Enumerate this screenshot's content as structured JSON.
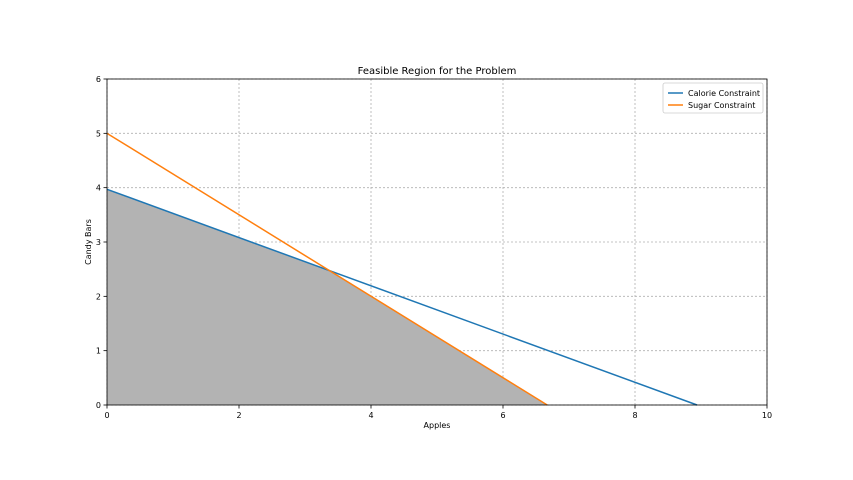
{
  "chart_data": {
    "type": "line",
    "title": "Feasible Region for the Problem",
    "xlabel": "Apples",
    "ylabel": "Candy Bars",
    "xlim": [
      0,
      10
    ],
    "ylim": [
      0,
      6
    ],
    "xticks": [
      "0",
      "2",
      "4",
      "6",
      "8",
      "10"
    ],
    "yticks": [
      "0",
      "1",
      "2",
      "3",
      "4",
      "5",
      "6"
    ],
    "grid": true,
    "legend_position": "top-right",
    "series": [
      {
        "name": "Calorie Constraint",
        "color": "#1f77b4",
        "x": [
          0,
          8.94
        ],
        "y": [
          3.97,
          0
        ]
      },
      {
        "name": "Sugar Constraint",
        "color": "#ff7f0e",
        "x": [
          0,
          6.67
        ],
        "y": [
          5,
          0
        ]
      }
    ],
    "feasible_region": {
      "fill_color": "#b3b3b3",
      "x": [
        0,
        0,
        3.38,
        6.67
      ],
      "y": [
        0,
        3.97,
        2.47,
        0
      ]
    }
  }
}
